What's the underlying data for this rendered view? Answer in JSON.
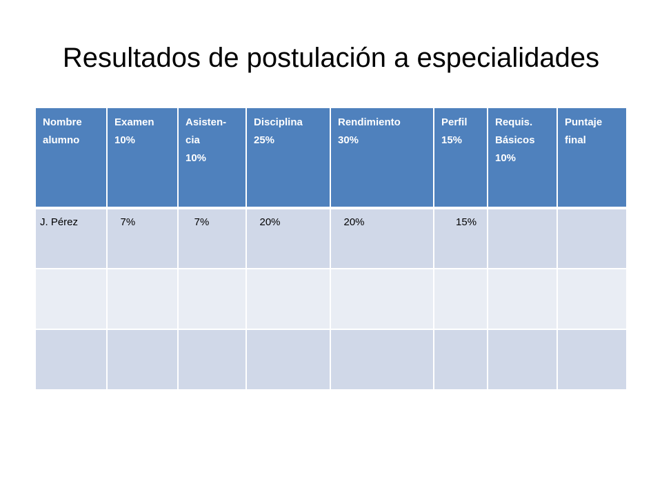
{
  "slide": {
    "title": "Resultados de postulación a especialidades"
  },
  "table": {
    "headers": [
      "Nombre\nalumno",
      "Examen\n10%",
      "Asisten-\ncia\n10%",
      "Disciplina\n25%",
      "Rendimiento\n30%",
      "Perfil\n15%",
      "Requis.\nBásicos\n10%",
      "Puntaje\nfinal"
    ],
    "rows": [
      [
        "J. Pérez",
        "   7%",
        "    7%",
        "   20%",
        "   20%",
        "      15%",
        "",
        ""
      ],
      [
        "",
        "",
        "",
        "",
        "",
        "",
        "",
        ""
      ],
      [
        "",
        "",
        "",
        "",
        "",
        "",
        "",
        ""
      ]
    ]
  },
  "colors": {
    "header_bg": "#4f81bd",
    "row_odd_bg": "#d0d8e8",
    "row_even_bg": "#e9edf4"
  }
}
